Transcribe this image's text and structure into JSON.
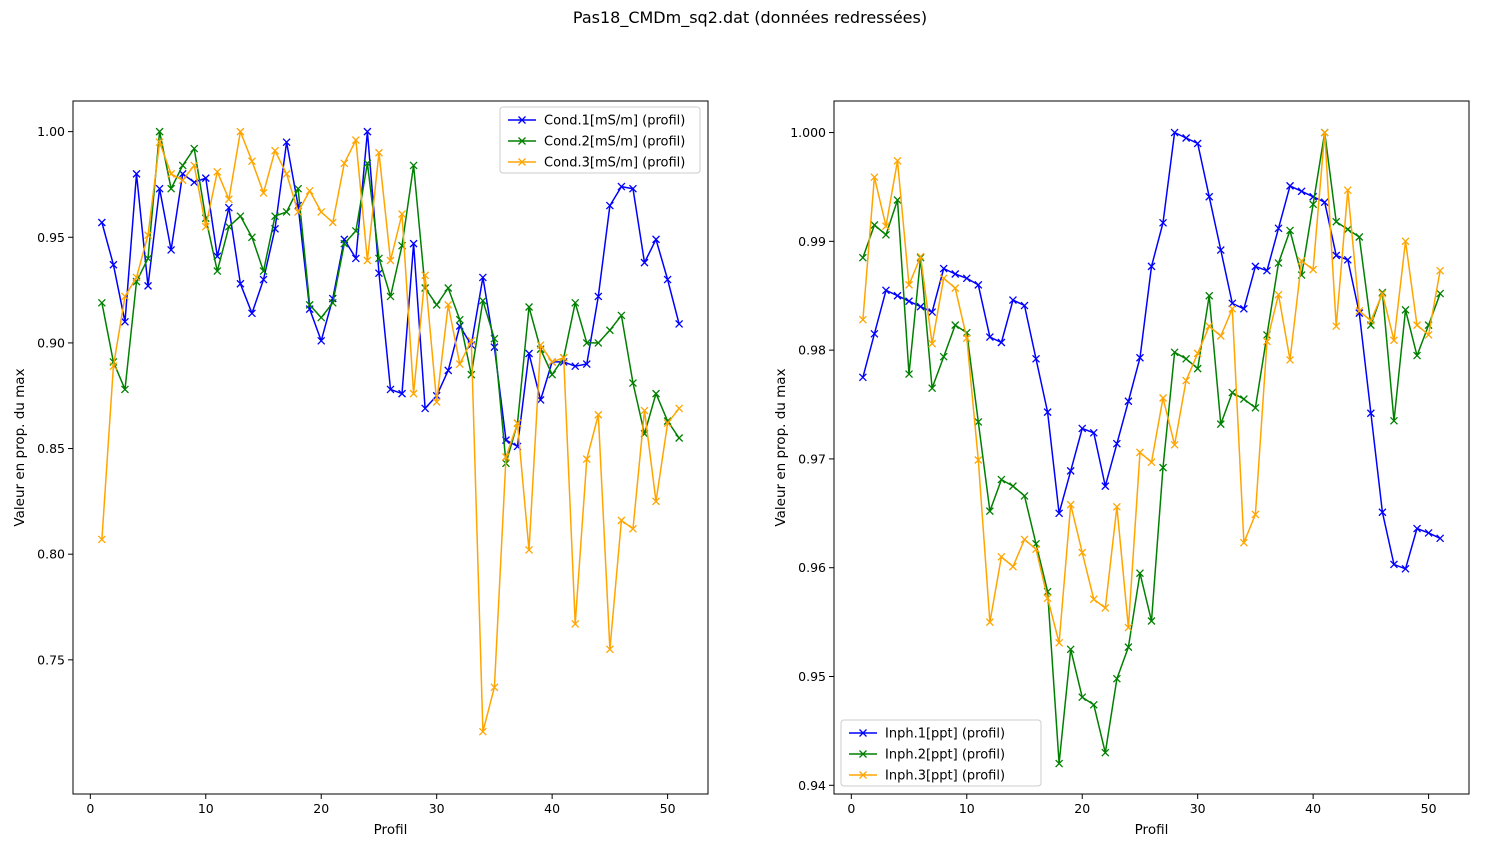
{
  "figure": {
    "suptitle": "Pas18_CMDm_sq2.dat (données redressées)"
  },
  "chart_data": [
    {
      "type": "line",
      "title": "",
      "xlabel": "Profil",
      "ylabel": "Valeur en prop. du max",
      "xlim": [
        -1.5,
        53.5
      ],
      "ylim": [
        0.6865,
        1.0145
      ],
      "xticks": [
        0,
        10,
        20,
        30,
        40,
        50
      ],
      "yticks": [
        0.75,
        0.8,
        0.85,
        0.9,
        0.95,
        1.0
      ],
      "ytick_labels": [
        "0.75",
        "0.80",
        "0.85",
        "0.90",
        "0.95",
        "1.00"
      ],
      "marker": "x",
      "legend": "top-right",
      "x": [
        1,
        2,
        3,
        4,
        5,
        6,
        7,
        8,
        9,
        10,
        11,
        12,
        13,
        14,
        15,
        16,
        17,
        18,
        19,
        20,
        21,
        22,
        23,
        24,
        25,
        26,
        27,
        28,
        29,
        30,
        31,
        32,
        33,
        34,
        35,
        36,
        37,
        38,
        39,
        40,
        41,
        42,
        43,
        44,
        45,
        46,
        47,
        48,
        49,
        50,
        51
      ],
      "series": [
        {
          "name": "Cond.1[mS/m] (profil)",
          "color": "#0000ff",
          "values": [
            0.957,
            0.937,
            0.91,
            0.98,
            0.927,
            0.973,
            0.944,
            0.98,
            0.976,
            0.978,
            0.941,
            0.964,
            0.928,
            0.914,
            0.93,
            0.954,
            0.995,
            0.965,
            0.916,
            0.901,
            0.921,
            0.949,
            0.94,
            1.0,
            0.933,
            0.878,
            0.876,
            0.947,
            0.869,
            0.875,
            0.887,
            0.908,
            0.899,
            0.931,
            0.898,
            0.854,
            0.851,
            0.895,
            0.873,
            0.891,
            0.891,
            0.889,
            0.89,
            0.922,
            0.965,
            0.974,
            0.973,
            0.938,
            0.949,
            0.93,
            0.909
          ]
        },
        {
          "name": "Cond.2[mS/m] (profil)",
          "color": "#008000",
          "values": [
            0.919,
            0.891,
            0.878,
            0.929,
            0.94,
            1.0,
            0.973,
            0.984,
            0.992,
            0.959,
            0.934,
            0.955,
            0.96,
            0.95,
            0.934,
            0.96,
            0.962,
            0.973,
            0.918,
            0.912,
            0.919,
            0.947,
            0.953,
            0.985,
            0.94,
            0.922,
            0.946,
            0.984,
            0.926,
            0.918,
            0.926,
            0.911,
            0.885,
            0.92,
            0.902,
            0.843,
            0.862,
            0.917,
            0.897,
            0.885,
            0.893,
            0.919,
            0.9,
            0.9,
            0.906,
            0.913,
            0.881,
            0.857,
            0.876,
            0.863,
            0.855
          ]
        },
        {
          "name": "Cond.3[mS/m] (profil)",
          "color": "#ffa500",
          "values": [
            0.807,
            0.889,
            0.922,
            0.931,
            0.951,
            0.995,
            0.98,
            0.977,
            0.984,
            0.955,
            0.981,
            0.968,
            1.0,
            0.986,
            0.971,
            0.991,
            0.98,
            0.962,
            0.972,
            0.962,
            0.957,
            0.985,
            0.996,
            0.939,
            0.99,
            0.939,
            0.961,
            0.876,
            0.932,
            0.872,
            0.918,
            0.89,
            0.901,
            0.716,
            0.737,
            0.846,
            0.862,
            0.802,
            0.899,
            0.891,
            0.893,
            0.767,
            0.845,
            0.866,
            0.755,
            0.816,
            0.812,
            0.868,
            0.825,
            0.862,
            0.869
          ]
        }
      ]
    },
    {
      "type": "line",
      "title": "",
      "xlabel": "Profil",
      "ylabel": "Valeur en prop. du max",
      "xlim": [
        -1.5,
        53.5
      ],
      "ylim": [
        0.9392,
        1.0029
      ],
      "xticks": [
        0,
        10,
        20,
        30,
        40,
        50
      ],
      "yticks": [
        0.94,
        0.95,
        0.96,
        0.97,
        0.98,
        0.99,
        1.0
      ],
      "ytick_labels": [
        "0.94",
        "0.95",
        "0.96",
        "0.97",
        "0.98",
        "0.99",
        "1.000"
      ],
      "marker": "x",
      "legend": "bottom-left",
      "x": [
        1,
        2,
        3,
        4,
        5,
        6,
        7,
        8,
        9,
        10,
        11,
        12,
        13,
        14,
        15,
        16,
        17,
        18,
        19,
        20,
        21,
        22,
        23,
        24,
        25,
        26,
        27,
        28,
        29,
        30,
        31,
        32,
        33,
        34,
        35,
        36,
        37,
        38,
        39,
        40,
        41,
        42,
        43,
        44,
        45,
        46,
        47,
        48,
        49,
        50,
        51
      ],
      "series": [
        {
          "name": "Inph.1[ppt] (profil)",
          "color": "#0000ff",
          "values": [
            0.9775,
            0.9815,
            0.9855,
            0.985,
            0.9845,
            0.984,
            0.9835,
            0.9875,
            0.987,
            0.9866,
            0.986,
            0.9812,
            0.9807,
            0.9846,
            0.9841,
            0.9792,
            0.9743,
            0.965,
            0.9689,
            0.9728,
            0.9724,
            0.9675,
            0.9714,
            0.9753,
            0.9793,
            0.9877,
            0.9917,
            1.0,
            0.9995,
            0.999,
            0.9941,
            0.9892,
            0.9843,
            0.9838,
            0.9877,
            0.9873,
            0.9912,
            0.9951,
            0.9946,
            0.9941,
            0.9936,
            0.9887,
            0.9883,
            0.9834,
            0.9742,
            0.9651,
            0.9603,
            0.9599,
            0.9636,
            0.9632,
            0.9627
          ]
        },
        {
          "name": "Inph.2[ppt] (profil)",
          "color": "#008000",
          "values": [
            0.9885,
            0.9915,
            0.9906,
            0.9938,
            0.9778,
            0.9885,
            0.9765,
            0.9794,
            0.9823,
            0.9816,
            0.9734,
            0.9652,
            0.9681,
            0.9675,
            0.9666,
            0.9622,
            0.9578,
            0.942,
            0.9525,
            0.9481,
            0.9474,
            0.943,
            0.9498,
            0.9527,
            0.9595,
            0.9551,
            0.9692,
            0.9798,
            0.9792,
            0.9783,
            0.985,
            0.9732,
            0.9761,
            0.9755,
            0.9747,
            0.9814,
            0.988,
            0.991,
            0.9869,
            0.9934,
            1.0,
            0.9918,
            0.9911,
            0.9904,
            0.9823,
            0.9853,
            0.9735,
            0.9837,
            0.9795,
            0.9823,
            0.9852
          ]
        },
        {
          "name": "Inph.3[ppt] (profil)",
          "color": "#ffa500",
          "values": [
            0.9828,
            0.9959,
            0.9914,
            0.9974,
            0.986,
            0.9886,
            0.9806,
            0.9866,
            0.9857,
            0.9811,
            0.9699,
            0.955,
            0.961,
            0.9601,
            0.9626,
            0.9617,
            0.9572,
            0.9531,
            0.9658,
            0.9614,
            0.9571,
            0.9563,
            0.9656,
            0.9545,
            0.9706,
            0.9697,
            0.9756,
            0.9713,
            0.9772,
            0.9797,
            0.9822,
            0.9813,
            0.9838,
            0.9623,
            0.9649,
            0.9808,
            0.9851,
            0.9791,
            0.9882,
            0.9874,
            1.0,
            0.9822,
            0.9947,
            0.9836,
            0.9827,
            0.9852,
            0.9809,
            0.99,
            0.9823,
            0.9814,
            0.9873
          ]
        }
      ]
    }
  ]
}
